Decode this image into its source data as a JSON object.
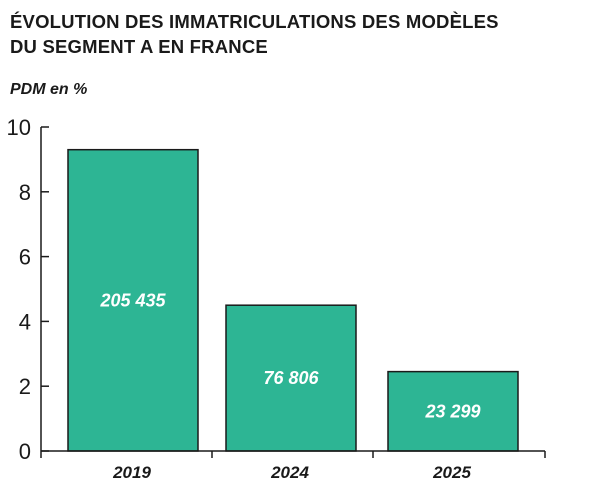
{
  "title_lines": [
    "ÉVOLUTION DES IMMATRICULATIONS DES MODÈLES",
    "DU SEGMENT A EN FRANCE"
  ],
  "unit_label": "PDM en %",
  "colors": {
    "bar": "#2db594",
    "bar_stroke": "#1a1a1a",
    "axis": "#1a1a1a"
  },
  "chart_data": {
    "type": "bar",
    "title": "ÉVOLUTION DES IMMATRICULATIONS DES MODÈLES DU SEGMENT A EN FRANCE",
    "ylabel": "PDM en %",
    "xlabel": "",
    "categories": [
      "2019",
      "2024",
      "2025"
    ],
    "values": [
      9.3,
      4.5,
      2.45
    ],
    "data_labels": [
      "205 435",
      "76 806",
      "23 299"
    ],
    "ylim": [
      0,
      10
    ],
    "yticks": [
      0,
      2,
      4,
      6,
      8,
      10
    ],
    "grid": false,
    "legend": "none"
  }
}
